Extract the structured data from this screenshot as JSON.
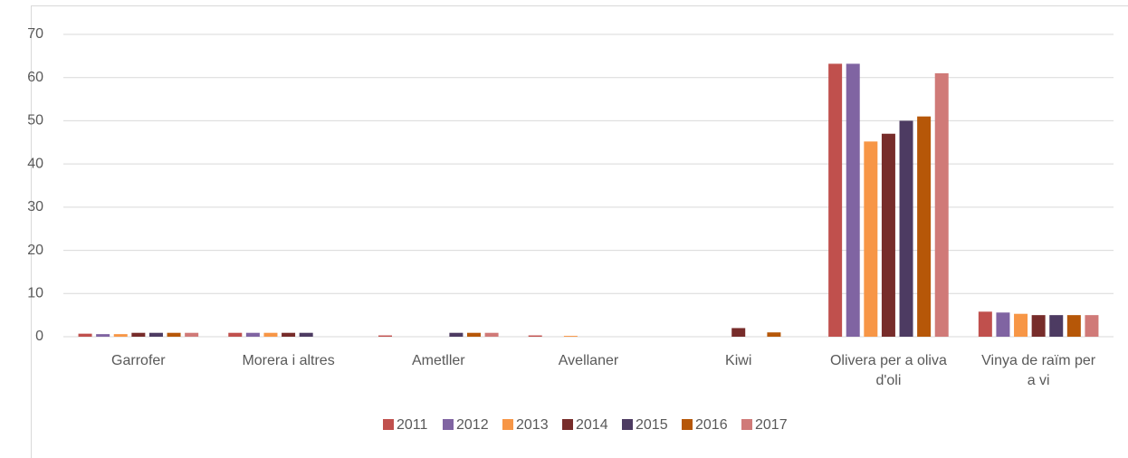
{
  "chart_data": {
    "type": "bar",
    "categories": [
      "Garrofer",
      "Morera i altres",
      "Ametller",
      "Avellaner",
      "Kiwi",
      "Olivera per a oliva d'oli",
      "Vinya de raïm per a vi"
    ],
    "series": [
      {
        "name": "2011",
        "color": "#c0504d",
        "values": [
          0.7,
          0.9,
          0.3,
          0.3,
          0,
          63.2,
          5.8
        ]
      },
      {
        "name": "2012",
        "color": "#8064a2",
        "values": [
          0.6,
          0.9,
          0,
          0,
          0,
          63.2,
          5.6
        ]
      },
      {
        "name": "2013",
        "color": "#f79646",
        "values": [
          0.6,
          0.9,
          0,
          0.2,
          0,
          45.2,
          5.3
        ]
      },
      {
        "name": "2014",
        "color": "#772c2a",
        "values": [
          0.9,
          0.9,
          0,
          0,
          2,
          47,
          5
        ]
      },
      {
        "name": "2015",
        "color": "#4d3b62",
        "values": [
          0.9,
          0.9,
          0.9,
          0,
          0,
          50,
          5
        ]
      },
      {
        "name": "2016",
        "color": "#b65708",
        "values": [
          0.9,
          0,
          0.9,
          0,
          1,
          51,
          5
        ]
      },
      {
        "name": "2017",
        "color": "#d07a78",
        "values": [
          0.9,
          0,
          0.9,
          0,
          0,
          61,
          5
        ]
      }
    ],
    "ylim": [
      0,
      70
    ],
    "yticks": [
      0,
      10,
      20,
      30,
      40,
      50,
      60,
      70
    ],
    "grid": true,
    "legend": "bottom"
  }
}
